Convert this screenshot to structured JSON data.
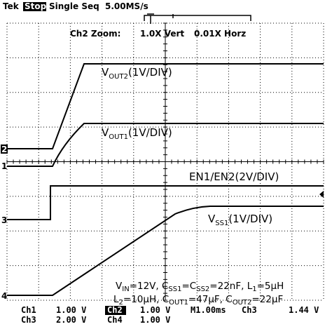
{
  "header": {
    "brand": "Tek",
    "state": "Stop",
    "mode": "Single Seq",
    "rate": "5.00MS/s"
  },
  "zoom": {
    "label": "Ch2 Zoom:",
    "vert": "1.0X Vert",
    "horz": "0.01X Horz"
  },
  "markers": [
    "1",
    "2",
    "3",
    "4"
  ],
  "labels": {
    "vout2": [
      "V",
      "OUT2",
      "(1V/DIV)"
    ],
    "vout1": [
      "V",
      "OUT1",
      "(1V/DIV)"
    ],
    "en": "EN1/EN2(2V/DIV)",
    "vss1": [
      "V",
      "SS1",
      "(1V/DIV)"
    ]
  },
  "conditions": [
    [
      "V",
      "IN",
      "=12V, C",
      "SS1",
      "=C",
      "SS2",
      "=22nF, L",
      "1",
      "=5µH"
    ],
    [
      "L",
      "2",
      "=10µH, C",
      "OUT1",
      "=47µF, C",
      "OUT2",
      "=22µF"
    ]
  ],
  "footer": [
    [
      "Ch1",
      "1.00 V",
      "Ch2",
      "1.00 V",
      "M1.00ms",
      "Ch3",
      "1.44 V"
    ],
    [
      "Ch3",
      "2.00 V",
      "Ch4",
      "1.00 V"
    ]
  ]
}
